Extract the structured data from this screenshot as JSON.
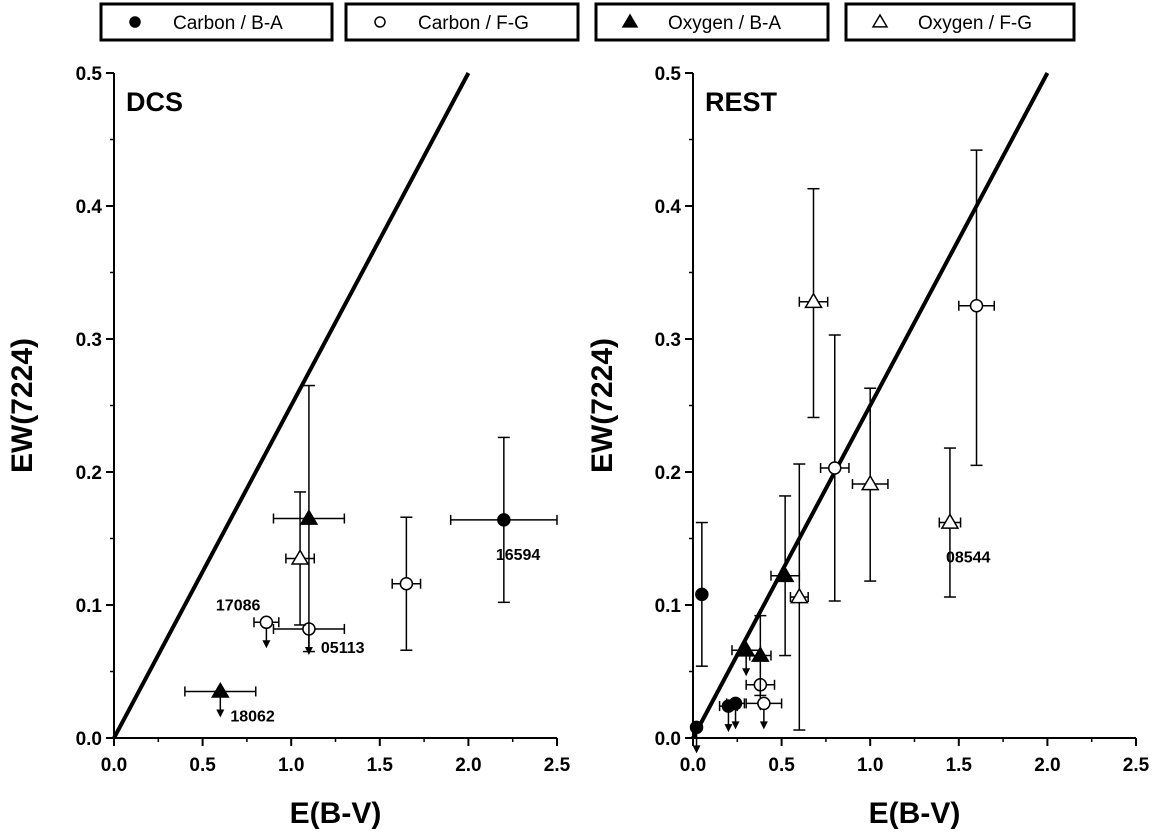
{
  "chart_data": {
    "type": "scatter",
    "legend": {
      "placement": "top",
      "entries": [
        {
          "label": "Carbon / B-A",
          "marker": "filled-circle"
        },
        {
          "label": "Carbon / F-G",
          "marker": "open-circle"
        },
        {
          "label": "Oxygen / B-A",
          "marker": "filled-triangle"
        },
        {
          "label": "Oxygen / F-G",
          "marker": "open-triangle"
        }
      ]
    },
    "panels": [
      {
        "label": "DCS",
        "xlabel": "E(B-V)",
        "ylabel": "EW(7224)",
        "xlim": [
          0,
          2.5
        ],
        "ylim": [
          0,
          0.5
        ],
        "x_ticks": [
          "0.0",
          "0.5",
          "1.0",
          "1.5",
          "2.0",
          "2.5"
        ],
        "y_ticks": [
          "0.0",
          "0.1",
          "0.2",
          "0.3",
          "0.4",
          "0.5"
        ],
        "line": {
          "x": [
            0,
            2.0
          ],
          "y": [
            0,
            0.5
          ]
        },
        "points": [
          {
            "series": "Carbon / B-A",
            "x": 2.2,
            "y": 0.164,
            "xerr": 0.3,
            "yerr_lo": 0.062,
            "yerr_hi": 0.062,
            "upper_limit": false,
            "label": "16594"
          },
          {
            "series": "Carbon / F-G",
            "x": 1.65,
            "y": 0.116,
            "xerr": 0.08,
            "yerr_lo": 0.05,
            "yerr_hi": 0.05,
            "upper_limit": false,
            "label": ""
          },
          {
            "series": "Carbon / F-G",
            "x": 0.86,
            "y": 0.087,
            "xerr": 0.07,
            "yerr_lo": 0,
            "yerr_hi": 0,
            "upper_limit": true,
            "label": "17086"
          },
          {
            "series": "Carbon / F-G",
            "x": 1.1,
            "y": 0.082,
            "xerr": 0.2,
            "yerr_lo": 0,
            "yerr_hi": 0,
            "upper_limit": true,
            "label": "05113"
          },
          {
            "series": "Oxygen / B-A",
            "x": 1.1,
            "y": 0.165,
            "xerr": 0.2,
            "yerr_lo": 0.1,
            "yerr_hi": 0.1,
            "upper_limit": false,
            "label": ""
          },
          {
            "series": "Oxygen / B-A",
            "x": 0.6,
            "y": 0.035,
            "xerr": 0.2,
            "yerr_lo": 0,
            "yerr_hi": 0,
            "upper_limit": true,
            "label": "18062"
          },
          {
            "series": "Oxygen / F-G",
            "x": 1.05,
            "y": 0.135,
            "xerr": 0.08,
            "yerr_lo": 0.05,
            "yerr_hi": 0.05,
            "upper_limit": false,
            "label": ""
          }
        ]
      },
      {
        "label": "REST",
        "xlabel": "E(B-V)",
        "ylabel": "EW(7224)",
        "xlim": [
          0,
          2.5
        ],
        "ylim": [
          0,
          0.5
        ],
        "x_ticks": [
          "0.0",
          "0.5",
          "1.0",
          "1.5",
          "2.0",
          "2.5"
        ],
        "y_ticks": [
          "0.0",
          "0.1",
          "0.2",
          "0.3",
          "0.4",
          "0.5"
        ],
        "line": {
          "x": [
            0,
            2.0
          ],
          "y": [
            0,
            0.5
          ]
        },
        "points": [
          {
            "series": "Carbon / B-A",
            "x": 0.05,
            "y": 0.108,
            "xerr": 0,
            "yerr_lo": 0.054,
            "yerr_hi": 0.054,
            "upper_limit": false,
            "label": ""
          },
          {
            "series": "Carbon / B-A",
            "x": 0.02,
            "y": 0.008,
            "xerr": 0.02,
            "yerr_lo": 0,
            "yerr_hi": 0,
            "upper_limit": true,
            "label": ""
          },
          {
            "series": "Carbon / B-A",
            "x": 0.2,
            "y": 0.024,
            "xerr": 0.05,
            "yerr_lo": 0,
            "yerr_hi": 0,
            "upper_limit": true,
            "label": ""
          },
          {
            "series": "Carbon / B-A",
            "x": 0.24,
            "y": 0.026,
            "xerr": 0.05,
            "yerr_lo": 0,
            "yerr_hi": 0,
            "upper_limit": true,
            "label": ""
          },
          {
            "series": "Carbon / F-G",
            "x": 1.6,
            "y": 0.325,
            "xerr": 0.1,
            "yerr_lo": 0.12,
            "yerr_hi": 0.117,
            "upper_limit": false,
            "label": ""
          },
          {
            "series": "Carbon / F-G",
            "x": 0.8,
            "y": 0.203,
            "xerr": 0.08,
            "yerr_lo": 0.1,
            "yerr_hi": 0.1,
            "upper_limit": false,
            "label": ""
          },
          {
            "series": "Carbon / F-G",
            "x": 0.38,
            "y": 0.04,
            "xerr": 0.08,
            "yerr_lo": 0,
            "yerr_hi": 0,
            "upper_limit": true,
            "label": ""
          },
          {
            "series": "Carbon / F-G",
            "x": 0.4,
            "y": 0.026,
            "xerr": 0.1,
            "yerr_lo": 0,
            "yerr_hi": 0,
            "upper_limit": true,
            "label": ""
          },
          {
            "series": "Oxygen / B-A",
            "x": 0.52,
            "y": 0.122,
            "xerr": 0.08,
            "yerr_lo": 0.06,
            "yerr_hi": 0.06,
            "upper_limit": false,
            "label": ""
          },
          {
            "series": "Oxygen / B-A",
            "x": 0.3,
            "y": 0.066,
            "xerr": 0.08,
            "yerr_lo": 0,
            "yerr_hi": 0,
            "upper_limit": true,
            "label": ""
          },
          {
            "series": "Oxygen / B-A",
            "x": 0.38,
            "y": 0.062,
            "xerr": 0.06,
            "yerr_lo": 0.03,
            "yerr_hi": 0.03,
            "upper_limit": false,
            "label": ""
          },
          {
            "series": "Oxygen / F-G",
            "x": 0.68,
            "y": 0.328,
            "xerr": 0.08,
            "yerr_lo": 0.087,
            "yerr_hi": 0.085,
            "upper_limit": false,
            "label": ""
          },
          {
            "series": "Oxygen / F-G",
            "x": 1.0,
            "y": 0.191,
            "xerr": 0.1,
            "yerr_lo": 0.073,
            "yerr_hi": 0.072,
            "upper_limit": false,
            "label": ""
          },
          {
            "series": "Oxygen / F-G",
            "x": 1.45,
            "y": 0.162,
            "xerr": 0.06,
            "yerr_lo": 0.056,
            "yerr_hi": 0.056,
            "upper_limit": false,
            "label": "08544"
          },
          {
            "series": "Oxygen / F-G",
            "x": 0.6,
            "y": 0.106,
            "xerr": 0.05,
            "yerr_lo": 0.1,
            "yerr_hi": 0.1,
            "upper_limit": false,
            "label": ""
          }
        ]
      }
    ]
  }
}
